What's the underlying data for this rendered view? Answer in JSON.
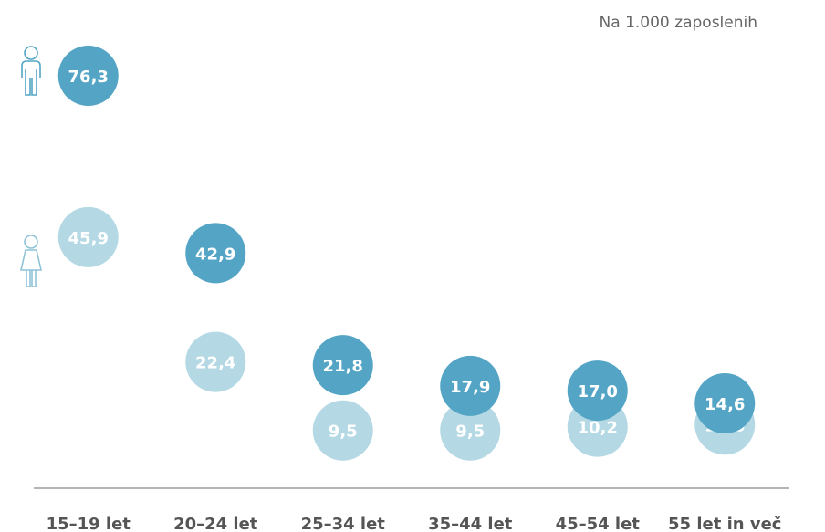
{
  "chart_data": {
    "type": "dot",
    "subtitle": "Na 1.000 zaposlenih",
    "categories": [
      "15–19 let",
      "20–24 let",
      "25–34 let",
      "35–44 let",
      "45–54 let",
      "55 let in več"
    ],
    "series": [
      {
        "color": "#54a5c5",
        "values": [
          76.3,
          42.9,
          21.8,
          17.9,
          17.0,
          14.6
        ],
        "value_labels": [
          "76,3",
          "42,9",
          "21,8",
          "17,9",
          "17,0",
          "14,6"
        ]
      },
      {
        "color": "#b4d9e5",
        "values": [
          45.9,
          22.4,
          9.5,
          9.5,
          10.2,
          10.6
        ],
        "value_labels": [
          "45,9",
          "22,4",
          "9,5",
          "9,5",
          "10,2",
          "10,6"
        ]
      }
    ]
  }
}
